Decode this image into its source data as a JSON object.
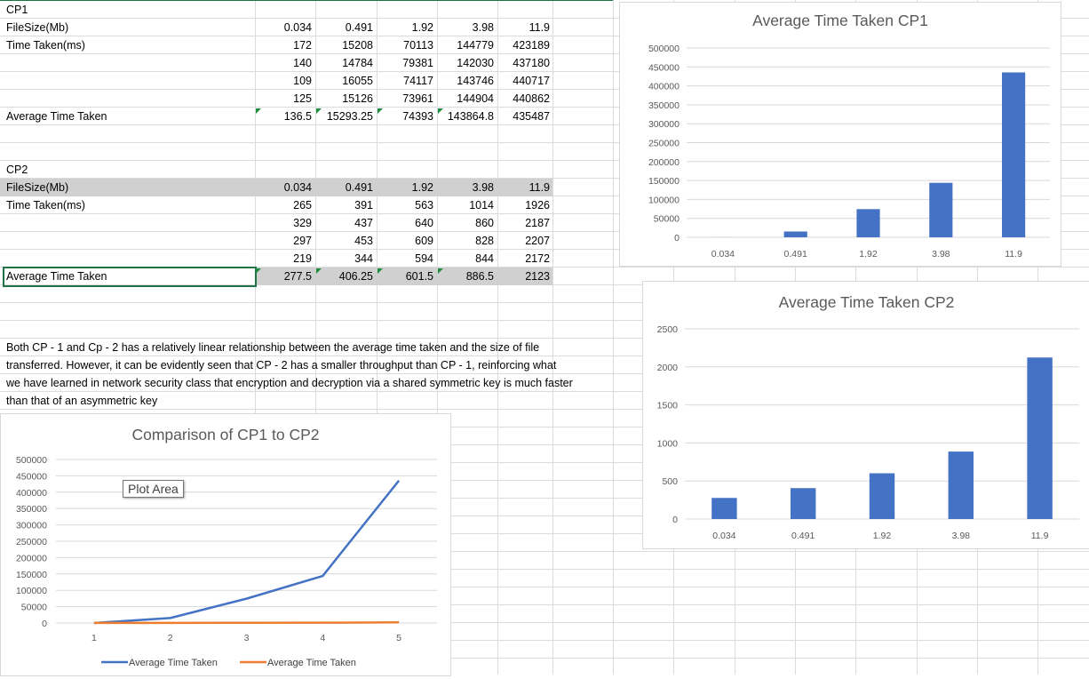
{
  "cp1": {
    "title": "CP1",
    "filesize_label": "FileSize(Mb)",
    "time_label": "Time Taken(ms)",
    "filesizes": [
      "0.034",
      "0.491",
      "1.92",
      "3.98",
      "11.9"
    ],
    "rows": [
      [
        "172",
        "15208",
        "70113",
        "144779",
        "423189"
      ],
      [
        "140",
        "14784",
        "79381",
        "142030",
        "437180"
      ],
      [
        "109",
        "16055",
        "74117",
        "143746",
        "440717"
      ],
      [
        "125",
        "15126",
        "73961",
        "144904",
        "440862"
      ]
    ],
    "avg_label": "Average Time Taken",
    "averages": [
      "136.5",
      "15293.25",
      "74393",
      "143864.8",
      "435487"
    ]
  },
  "cp2": {
    "title": "CP2",
    "filesize_label": "FileSize(Mb)",
    "time_label": "Time Taken(ms)",
    "filesizes": [
      "0.034",
      "0.491",
      "1.92",
      "3.98",
      "11.9"
    ],
    "rows": [
      [
        "265",
        "391",
        "563",
        "1014",
        "1926"
      ],
      [
        "329",
        "437",
        "640",
        "860",
        "2187"
      ],
      [
        "297",
        "453",
        "609",
        "828",
        "2207"
      ],
      [
        "219",
        "344",
        "594",
        "844",
        "2172"
      ]
    ],
    "avg_label": "Average Time Taken",
    "averages": [
      "277.5",
      "406.25",
      "601.5",
      "886.5",
      "2123"
    ]
  },
  "note": {
    "lines": [
      "Both CP - 1 and Cp - 2 has a relatively linear relationship between the average time taken and the size of file",
      "transferred. However, it can be evidently seen that CP - 2 has a smaller throughput than CP - 1, reinforcing what",
      "we have learned in network security class that encryption and decryption via a shared symmetric key is much faster",
      "than that of an asymmetric key"
    ]
  },
  "tooltip": {
    "plot_area": "Plot Area"
  },
  "colors": {
    "bar": "#4472c4",
    "series1": "#4472c4",
    "series2": "#ed7d31",
    "grid": "#d9d9d9",
    "axis_text": "#595959"
  },
  "chart_data": [
    {
      "type": "bar",
      "title": "Average Time Taken CP1",
      "categories": [
        "0.034",
        "0.491",
        "1.92",
        "3.98",
        "11.9"
      ],
      "values": [
        136.5,
        15293.25,
        74393,
        143864.8,
        435487
      ],
      "ylim": [
        0,
        500000
      ],
      "yticks": [
        0,
        50000,
        100000,
        150000,
        200000,
        250000,
        300000,
        350000,
        400000,
        450000,
        500000
      ],
      "grid": true
    },
    {
      "type": "bar",
      "title": "Average Time Taken CP2",
      "categories": [
        "0.034",
        "0.491",
        "1.92",
        "3.98",
        "11.9"
      ],
      "values": [
        277.5,
        406.25,
        601.5,
        886.5,
        2123
      ],
      "ylim": [
        0,
        2500
      ],
      "yticks": [
        0,
        500,
        1000,
        1500,
        2000,
        2500
      ],
      "grid": true
    },
    {
      "type": "line",
      "title": "Comparison of CP1 to CP2",
      "x": [
        1,
        2,
        3,
        4,
        5
      ],
      "series": [
        {
          "name": "Average Time Taken",
          "values": [
            136.5,
            15293.25,
            74393,
            143864.8,
            435487
          ]
        },
        {
          "name": "Average Time Taken",
          "values": [
            277.5,
            406.25,
            601.5,
            886.5,
            2123
          ]
        }
      ],
      "ylim": [
        0,
        500000
      ],
      "yticks": [
        0,
        50000,
        100000,
        150000,
        200000,
        250000,
        300000,
        350000,
        400000,
        450000,
        500000
      ],
      "legend": "bottom",
      "grid": true
    }
  ]
}
